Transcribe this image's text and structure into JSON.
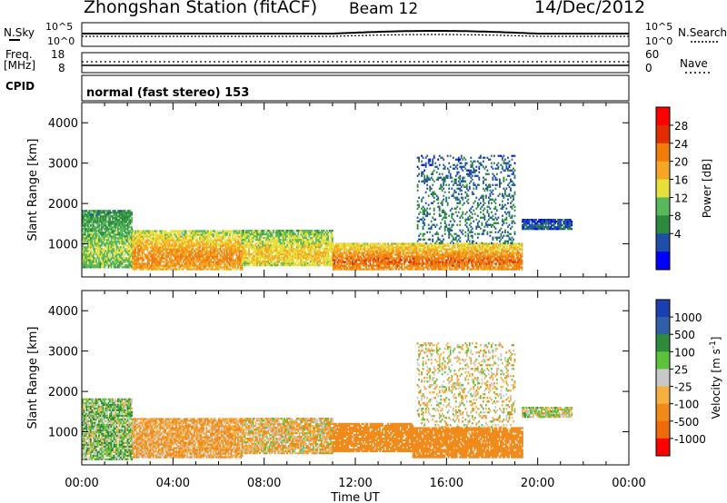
{
  "header": {
    "station_title": "Zhongshan Station (fitACF)",
    "beam": "Beam 12",
    "date": "14/Dec/2012"
  },
  "top_panels": {
    "nsky_label": "N.Sky",
    "nsearch_label": "N.Search",
    "noise_ticks_left": [
      "10^5",
      "10^0"
    ],
    "noise_ticks_right": [
      "10^5",
      "10^0"
    ],
    "freq_label_1": "Freq.",
    "freq_label_2": "[MHz]",
    "freq_ticks": [
      "18",
      "8"
    ],
    "nave_label": "Nave",
    "nave_ticks": [
      "60",
      "0"
    ],
    "cpid_label": "CPID",
    "cpid_value": "normal (fast stereo) 153"
  },
  "colorbars": {
    "power": {
      "title": "Power [dB]",
      "ticks": [
        "28",
        "24",
        "20",
        "16",
        "12",
        "8",
        "4"
      ],
      "colors": [
        "#0000ff",
        "#1e4fa8",
        "#2d8a3c",
        "#58b85a",
        "#e8e03a",
        "#f5a623",
        "#f07c0c",
        "#e02e00",
        "#ff0000"
      ]
    },
    "velocity": {
      "title_main": "Velocity",
      "title_units": "[m s",
      "title_sup": "-1",
      "title_end": "]",
      "ticks": [
        "1000",
        "500",
        "100",
        "25",
        "-25",
        "-100",
        "-500",
        "-1000"
      ],
      "colors": [
        "#1a3fb0",
        "#2e5fa8",
        "#2e8a3c",
        "#5cc23a",
        "#c8c8c8",
        "#f5b041",
        "#f08a1a",
        "#f06a0a",
        "#ff0000"
      ]
    }
  },
  "axes": {
    "ylabel": "Slant Range [km]",
    "y_ticks": [
      "4000",
      "3000",
      "2000",
      "1000"
    ],
    "x_ticks": [
      "00:00",
      "04:00",
      "08:00",
      "12:00",
      "16:00",
      "20:00",
      "00:00"
    ],
    "xlabel": "Time UT"
  },
  "chart_data": [
    {
      "type": "heatmap",
      "panel": "power",
      "title": "",
      "xlabel": "Time UT",
      "ylabel": "Slant Range [km]",
      "ylim": [
        180,
        4500
      ],
      "xlim_hours": [
        0,
        24
      ],
      "color_quantity": "Power [dB]",
      "bands": [
        {
          "t_start": 0.0,
          "t_end": 2.2,
          "r_low": 400,
          "r_high": 1800,
          "mean_db": 14
        },
        {
          "t_start": 2.2,
          "t_end": 7.0,
          "r_low": 350,
          "r_high": 1300,
          "mean_db": 22
        },
        {
          "t_start": 7.0,
          "t_end": 11.0,
          "r_low": 450,
          "r_high": 1350,
          "mean_db": 18
        },
        {
          "t_start": 11.0,
          "t_end": 19.3,
          "r_low": 350,
          "r_high": 1000,
          "mean_db": 24
        },
        {
          "t_start": 14.7,
          "t_end": 19.0,
          "r_low": 1000,
          "r_high": 3200,
          "mean_db": 8
        },
        {
          "t_start": 19.3,
          "t_end": 21.5,
          "r_low": 1350,
          "r_high": 1600,
          "mean_db": 6
        }
      ]
    },
    {
      "type": "heatmap",
      "panel": "velocity",
      "title": "",
      "xlabel": "Time UT",
      "ylabel": "Slant Range [km]",
      "ylim": [
        180,
        4500
      ],
      "xlim_hours": [
        0,
        24
      ],
      "color_quantity": "Velocity [m s-1]",
      "bands": [
        {
          "t_start": 0.0,
          "t_end": 2.2,
          "r_low": 300,
          "r_high": 1800,
          "mean_velocity": 50
        },
        {
          "t_start": 2.2,
          "t_end": 7.0,
          "r_low": 350,
          "r_high": 1300,
          "mean_velocity": -100
        },
        {
          "t_start": 7.0,
          "t_end": 11.0,
          "r_low": 450,
          "r_high": 1350,
          "mean_velocity": -60
        },
        {
          "t_start": 11.0,
          "t_end": 14.5,
          "r_low": 500,
          "r_high": 1200,
          "mean_velocity": -250
        },
        {
          "t_start": 14.5,
          "t_end": 19.3,
          "r_low": 350,
          "r_high": 1100,
          "mean_velocity": -300
        },
        {
          "t_start": 14.7,
          "t_end": 19.0,
          "r_low": 1100,
          "r_high": 3200,
          "mean_velocity": -30
        },
        {
          "t_start": 19.3,
          "t_end": 21.5,
          "r_low": 1350,
          "r_high": 1600,
          "mean_velocity": 0
        }
      ]
    }
  ]
}
